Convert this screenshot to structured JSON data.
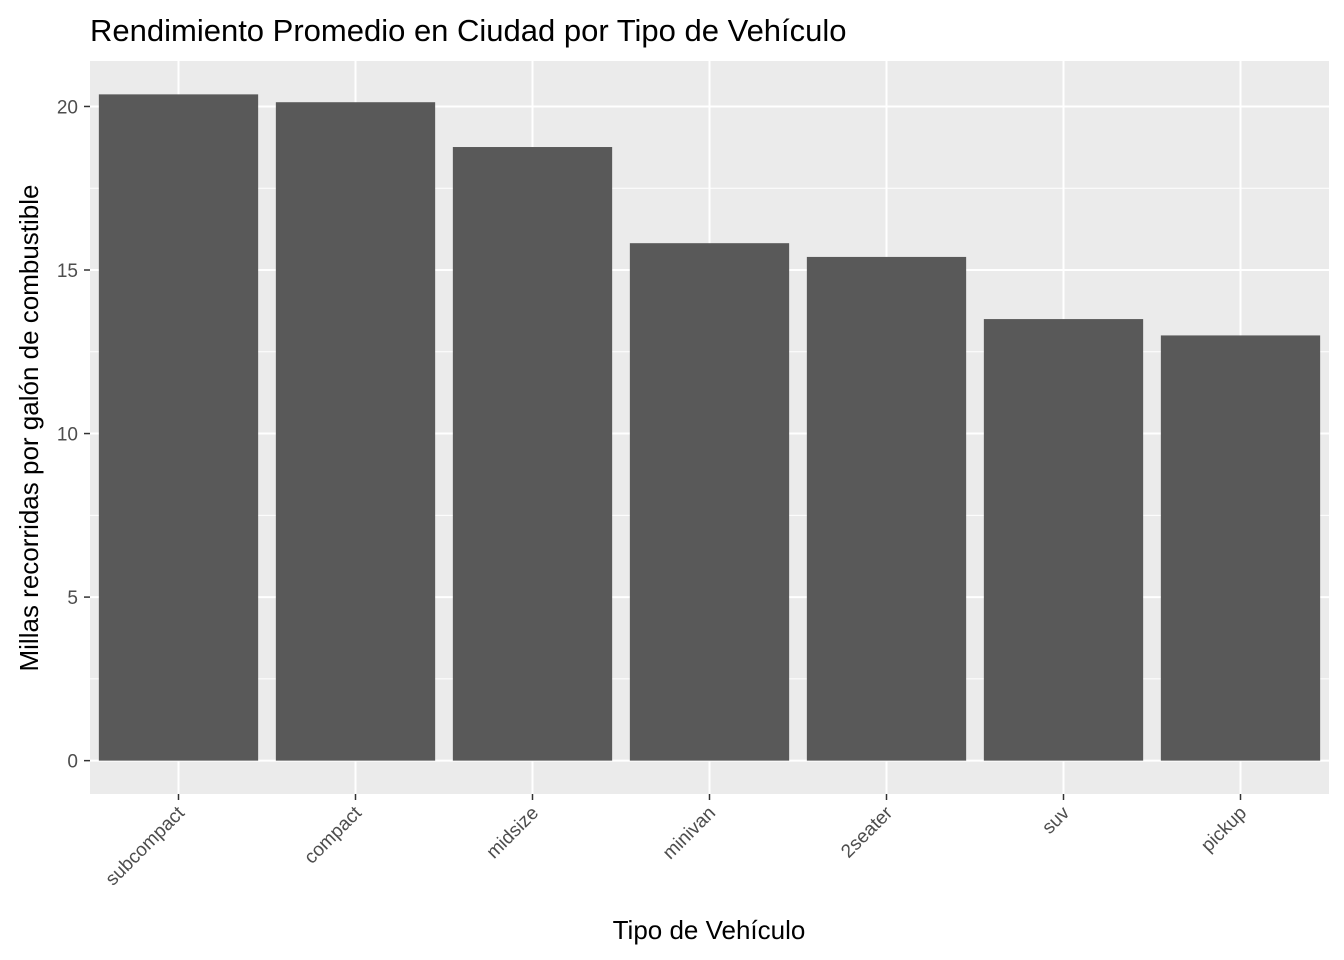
{
  "chart_data": {
    "type": "bar",
    "title": "Rendimiento Promedio en Ciudad por Tipo de Vehículo",
    "xlabel": "Tipo de Vehículo",
    "ylabel": "Millas recorridas por galón de combustible",
    "categories": [
      "subcompact",
      "compact",
      "midsize",
      "minivan",
      "2seater",
      "suv",
      "pickup"
    ],
    "values": [
      20.37,
      20.13,
      18.76,
      15.82,
      15.4,
      13.5,
      13.0
    ],
    "ylim": [
      -1.02,
      21.39
    ],
    "yticks": [
      0,
      5,
      10,
      15,
      20
    ],
    "ytick_labels": [
      "0",
      "5",
      "10",
      "15",
      "20"
    ],
    "grid": true,
    "legend": "none",
    "colors": {
      "bar": "#595959",
      "panel": "#ebebeb",
      "grid": "#ffffff",
      "tick_text": "#4d4d4d",
      "text": "#000000"
    }
  }
}
